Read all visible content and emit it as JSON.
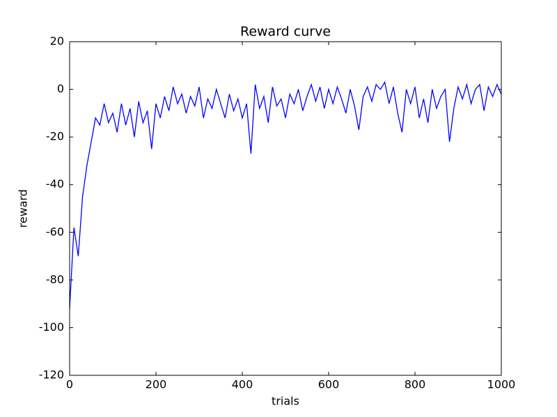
{
  "chart_data": {
    "type": "line",
    "title": "Reward curve",
    "x_label": "trials",
    "y_label": "reward",
    "color": "#0000ff",
    "x": [
      0,
      10,
      20,
      30,
      40,
      50,
      60,
      70,
      80,
      90,
      100,
      110,
      120,
      130,
      140,
      150,
      160,
      170,
      180,
      190,
      200,
      210,
      220,
      230,
      240,
      250,
      260,
      270,
      280,
      290,
      300,
      310,
      320,
      330,
      340,
      350,
      360,
      370,
      380,
      390,
      400,
      410,
      420,
      430,
      440,
      450,
      460,
      470,
      480,
      490,
      500,
      510,
      520,
      530,
      540,
      550,
      560,
      570,
      580,
      590,
      600,
      610,
      620,
      630,
      640,
      650,
      660,
      670,
      680,
      690,
      700,
      710,
      720,
      730,
      740,
      750,
      760,
      770,
      780,
      790,
      800,
      810,
      820,
      830,
      840,
      850,
      860,
      870,
      880,
      890,
      900,
      910,
      920,
      930,
      940,
      950,
      960,
      970,
      980,
      990,
      1000
    ],
    "values": [
      -92,
      -58,
      -70,
      -45,
      -32,
      -22,
      -12,
      -15,
      -6,
      -14,
      -10,
      -18,
      -6,
      -15,
      -8,
      -20,
      -5,
      -14,
      -9,
      -25,
      -6,
      -12,
      -3,
      -9,
      1,
      -6,
      -2,
      -10,
      -3,
      -7,
      1,
      -12,
      -4,
      -8,
      0,
      -6,
      -12,
      -2,
      -9,
      -4,
      -12,
      -6,
      -27,
      2,
      -8,
      -3,
      -14,
      1,
      -7,
      -4,
      -12,
      -2,
      -6,
      0,
      -9,
      -3,
      2,
      -5,
      1,
      -8,
      0,
      -6,
      1,
      -4,
      -10,
      0,
      -7,
      -17,
      -3,
      1,
      -5,
      2,
      0,
      3,
      -6,
      1,
      -10,
      -18,
      0,
      -6,
      1,
      -12,
      -4,
      -14,
      0,
      -8,
      -3,
      0,
      -22,
      -8,
      1,
      -4,
      2,
      -6,
      0,
      2,
      -9,
      1,
      -3,
      2,
      -2
    ],
    "xlim": [
      0,
      1000
    ],
    "ylim": [
      -120,
      20
    ],
    "xticks": [
      0,
      200,
      400,
      600,
      800,
      1000
    ],
    "yticks": [
      -120,
      -100,
      -80,
      -60,
      -40,
      -20,
      0,
      20
    ]
  }
}
